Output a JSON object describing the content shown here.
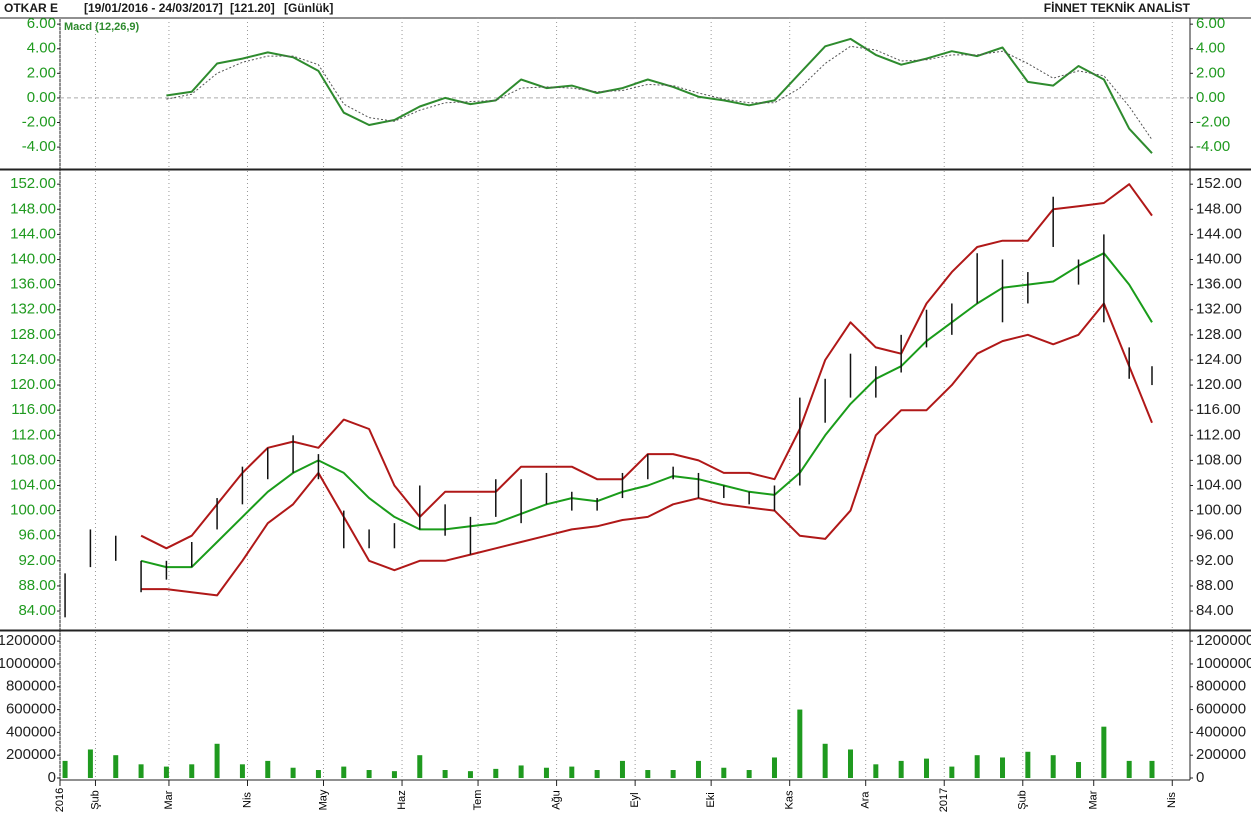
{
  "header": {
    "symbol": "OTKAR E",
    "range": "[19/01/2016 - 24/03/2017]",
    "last": "[121.20]",
    "period": "[Günlük]",
    "brand": "FİNNET TEKNİK ANALİST"
  },
  "chart_data": [
    {
      "type": "line",
      "x": [
        "2016-01-20",
        "2016-01-30",
        "2016-02-09",
        "2016-02-19",
        "2016-02-29",
        "2016-03-10",
        "2016-03-20",
        "2016-03-30",
        "2016-04-09",
        "2016-04-19",
        "2016-04-29",
        "2016-05-09",
        "2016-05-19",
        "2016-05-29",
        "2016-06-08",
        "2016-06-18",
        "2016-06-28",
        "2016-07-08",
        "2016-07-18",
        "2016-07-28",
        "2016-08-07",
        "2016-08-17",
        "2016-08-27",
        "2016-09-06",
        "2016-09-16",
        "2016-09-26",
        "2016-10-06",
        "2016-10-16",
        "2016-10-26",
        "2016-11-05",
        "2016-11-15",
        "2016-11-25",
        "2016-12-05",
        "2016-12-15",
        "2016-12-25",
        "2017-01-04",
        "2017-01-14",
        "2017-01-24",
        "2017-02-03",
        "2017-02-13",
        "2017-02-23",
        "2017-03-05",
        "2017-03-15",
        "2017-03-24"
      ],
      "series": [
        {
          "name": "Macd (12,26,9)",
          "color": "#2e8b2e",
          "values": [
            null,
            null,
            null,
            null,
            0.2,
            0.5,
            2.8,
            3.2,
            3.7,
            3.3,
            2.2,
            -1.2,
            -2.2,
            -1.8,
            -0.7,
            0.0,
            -0.5,
            -0.2,
            1.5,
            0.8,
            1.0,
            0.4,
            0.8,
            1.5,
            0.9,
            0.1,
            -0.2,
            -0.6,
            -0.2,
            2.0,
            4.2,
            4.8,
            3.5,
            2.7,
            3.2,
            3.8,
            3.4,
            4.1,
            1.3,
            1.0,
            2.6,
            1.5,
            -2.5,
            -4.5
          ]
        },
        {
          "color": "#555555",
          "dash": true,
          "values": [
            null,
            null,
            null,
            null,
            -0.1,
            0.3,
            2.0,
            2.9,
            3.4,
            3.4,
            2.7,
            -0.5,
            -1.6,
            -1.9,
            -1.0,
            -0.4,
            -0.3,
            -0.2,
            0.8,
            0.9,
            0.8,
            0.5,
            0.6,
            1.1,
            1.0,
            0.4,
            -0.1,
            -0.4,
            -0.4,
            0.8,
            2.8,
            4.2,
            3.9,
            3.0,
            3.1,
            3.5,
            3.5,
            3.8,
            2.8,
            1.6,
            2.2,
            1.8,
            -0.7,
            -3.4
          ]
        }
      ],
      "ylim": [
        -5.7,
        6.5
      ],
      "yticks": [
        {
          "value": -4,
          "label": "-4.00"
        },
        {
          "value": -2,
          "label": "-2.00"
        },
        {
          "value": 0,
          "label": "0.00"
        },
        {
          "value": 2,
          "label": "2.00"
        },
        {
          "value": 4,
          "label": "4.00"
        },
        {
          "value": 6,
          "label": "6.00"
        }
      ],
      "zero_line": true
    },
    {
      "type": "hilo",
      "x": [
        "2016-01-20",
        "2016-01-30",
        "2016-02-09",
        "2016-02-19",
        "2016-02-29",
        "2016-03-10",
        "2016-03-20",
        "2016-03-30",
        "2016-04-09",
        "2016-04-19",
        "2016-04-29",
        "2016-05-09",
        "2016-05-19",
        "2016-05-29",
        "2016-06-08",
        "2016-06-18",
        "2016-06-28",
        "2016-07-08",
        "2016-07-18",
        "2016-07-28",
        "2016-08-07",
        "2016-08-17",
        "2016-08-27",
        "2016-09-06",
        "2016-09-16",
        "2016-09-26",
        "2016-10-06",
        "2016-10-16",
        "2016-10-26",
        "2016-11-05",
        "2016-11-15",
        "2016-11-25",
        "2016-12-05",
        "2016-12-15",
        "2016-12-25",
        "2017-01-04",
        "2017-01-14",
        "2017-01-24",
        "2017-02-03",
        "2017-02-13",
        "2017-02-23",
        "2017-03-05",
        "2017-03-15",
        "2017-03-24"
      ],
      "high": [
        90,
        97,
        96,
        92,
        92,
        95,
        102,
        107,
        110,
        112,
        109,
        100,
        97,
        98,
        104,
        101,
        99,
        105,
        105,
        106,
        103,
        102,
        106,
        109,
        107,
        106,
        104,
        103,
        104,
        118,
        121,
        125,
        123,
        128,
        132,
        133,
        141,
        140,
        138,
        150,
        140,
        144,
        126,
        123
      ],
      "low": [
        83,
        91,
        92,
        87,
        89,
        91,
        97,
        101,
        105,
        106,
        105,
        94,
        94,
        94,
        97,
        96,
        93,
        99,
        98,
        101,
        100,
        100,
        102,
        105,
        105,
        102,
        102,
        101,
        100,
        104,
        114,
        118,
        118,
        122,
        126,
        128,
        133,
        130,
        133,
        142,
        136,
        130,
        121,
        120
      ],
      "color": "#111111",
      "series": [
        {
          "color": "#b01818",
          "values": [
            null,
            null,
            null,
            96,
            94,
            96,
            101,
            106,
            110,
            111,
            110,
            114.5,
            113,
            104,
            99,
            103,
            103,
            103,
            107,
            107,
            107,
            105,
            105,
            109,
            109,
            108,
            106,
            106,
            105,
            113,
            124,
            130,
            126,
            125,
            133,
            138,
            142,
            143,
            143,
            148,
            148.5,
            149,
            152,
            147
          ]
        },
        {
          "color": "#1a9c1a",
          "values": [
            null,
            null,
            null,
            92,
            91,
            91,
            95,
            99,
            103,
            106,
            108,
            106,
            102,
            99,
            97,
            97,
            97.5,
            98,
            99.5,
            101,
            102,
            101.5,
            103,
            104,
            105.5,
            105,
            104,
            103,
            102.5,
            106,
            112,
            117,
            121,
            123,
            127,
            130,
            133,
            135.5,
            136,
            136.5,
            139,
            141,
            136,
            130
          ]
        },
        {
          "color": "#b01818",
          "values": [
            null,
            null,
            null,
            87.5,
            87.5,
            87,
            86.5,
            92,
            98,
            101,
            106,
            99,
            92,
            90.5,
            92,
            92,
            93,
            94,
            95,
            96,
            97,
            97.5,
            98.5,
            99,
            101,
            102,
            101,
            100.5,
            100,
            96,
            95.5,
            100,
            112,
            116,
            116,
            120,
            125,
            127,
            128,
            126.5,
            128,
            133,
            123,
            114
          ]
        }
      ],
      "ylim": [
        81.3,
        154.1
      ],
      "yticks": [
        {
          "value": 84,
          "label": "84.00"
        },
        {
          "value": 88,
          "label": "88.00"
        },
        {
          "value": 92,
          "label": "92.00"
        },
        {
          "value": 96,
          "label": "96.00"
        },
        {
          "value": 100,
          "label": "100.00"
        },
        {
          "value": 104,
          "label": "104.00"
        },
        {
          "value": 108,
          "label": "108.00"
        },
        {
          "value": 112,
          "label": "112.00"
        },
        {
          "value": 116,
          "label": "116.00"
        },
        {
          "value": 120,
          "label": "120.00"
        },
        {
          "value": 124,
          "label": "124.00"
        },
        {
          "value": 128,
          "label": "128.00"
        },
        {
          "value": 132,
          "label": "132.00"
        },
        {
          "value": 136,
          "label": "136.00"
        },
        {
          "value": 140,
          "label": "140.00"
        },
        {
          "value": 144,
          "label": "144.00"
        },
        {
          "value": 148,
          "label": "148.00"
        },
        {
          "value": 152,
          "label": "152.00"
        }
      ]
    },
    {
      "type": "bar",
      "x": [
        "2016-01-20",
        "2016-01-30",
        "2016-02-09",
        "2016-02-19",
        "2016-02-29",
        "2016-03-10",
        "2016-03-20",
        "2016-03-30",
        "2016-04-09",
        "2016-04-19",
        "2016-04-29",
        "2016-05-09",
        "2016-05-19",
        "2016-05-29",
        "2016-06-08",
        "2016-06-18",
        "2016-06-28",
        "2016-07-08",
        "2016-07-18",
        "2016-07-28",
        "2016-08-07",
        "2016-08-17",
        "2016-08-27",
        "2016-09-06",
        "2016-09-16",
        "2016-09-26",
        "2016-10-06",
        "2016-10-16",
        "2016-10-26",
        "2016-11-05",
        "2016-11-15",
        "2016-11-25",
        "2016-12-05",
        "2016-12-15",
        "2016-12-25",
        "2017-01-04",
        "2017-01-14",
        "2017-01-24",
        "2017-02-03",
        "2017-02-13",
        "2017-02-23",
        "2017-03-05",
        "2017-03-15",
        "2017-03-24"
      ],
      "values": [
        150000,
        250000,
        200000,
        120000,
        100000,
        120000,
        300000,
        120000,
        150000,
        90000,
        70000,
        100000,
        70000,
        60000,
        200000,
        70000,
        60000,
        80000,
        110000,
        90000,
        100000,
        70000,
        150000,
        70000,
        70000,
        150000,
        90000,
        70000,
        180000,
        600000,
        300000,
        250000,
        120000,
        150000,
        170000,
        100000,
        200000,
        180000,
        230000,
        200000,
        140000,
        450000,
        150000,
        150000
      ],
      "color": "#1f9a1f",
      "ylim": [
        -17500,
        1280000
      ],
      "yticks": [
        0,
        200000,
        400000,
        600000,
        800000,
        1000000,
        1200000
      ],
      "xlim": [
        "2016-01-18",
        "2017-04-08"
      ],
      "xticks": [
        {
          "value": "2016-01-18",
          "label": "2016"
        },
        {
          "value": "2016-02-01",
          "label": "Şub"
        },
        {
          "value": "2016-03-01",
          "label": "Mar"
        },
        {
          "value": "2016-04-01",
          "label": "Nis"
        },
        {
          "value": "2016-05-01",
          "label": "May"
        },
        {
          "value": "2016-06-01",
          "label": "Haz"
        },
        {
          "value": "2016-07-01",
          "label": "Tem"
        },
        {
          "value": "2016-08-01",
          "label": "Ağu"
        },
        {
          "value": "2016-09-01",
          "label": "Eyl"
        },
        {
          "value": "2016-10-01",
          "label": "Eki"
        },
        {
          "value": "2016-11-01",
          "label": "Kas"
        },
        {
          "value": "2016-12-01",
          "label": "Ara"
        },
        {
          "value": "2017-01-01",
          "label": "2017"
        },
        {
          "value": "2017-02-01",
          "label": "Şub"
        },
        {
          "value": "2017-03-01",
          "label": "Mar"
        },
        {
          "value": "2017-04-01",
          "label": "Nis"
        }
      ]
    }
  ]
}
